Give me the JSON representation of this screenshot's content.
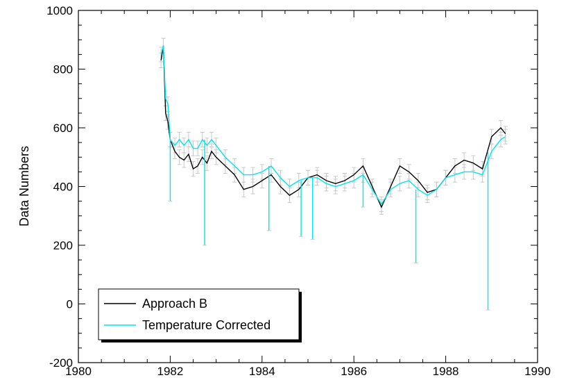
{
  "chart_data": {
    "type": "line",
    "title": "",
    "xlabel": "",
    "ylabel": "Data Numbers",
    "xlim": [
      1980,
      1990
    ],
    "ylim": [
      -200,
      1000
    ],
    "x_ticks": [
      1980,
      1982,
      1984,
      1986,
      1988,
      1990
    ],
    "y_ticks": [
      -200,
      0,
      200,
      400,
      600,
      800,
      1000
    ],
    "grid": false,
    "legend_position": "bottom-left",
    "error_bar_color": "#c8c8c8",
    "series": [
      {
        "name": "Approach B",
        "color": "#000000",
        "x": [
          1981.8,
          1981.85,
          1981.9,
          1981.95,
          1982.0,
          1982.1,
          1982.2,
          1982.3,
          1982.4,
          1982.5,
          1982.6,
          1982.7,
          1982.8,
          1982.9,
          1983.0,
          1983.2,
          1983.4,
          1983.6,
          1983.8,
          1984.0,
          1984.2,
          1984.4,
          1984.6,
          1984.8,
          1985.0,
          1985.2,
          1985.4,
          1985.6,
          1985.8,
          1986.0,
          1986.2,
          1986.4,
          1986.6,
          1986.8,
          1987.0,
          1987.2,
          1987.4,
          1987.6,
          1987.8,
          1988.0,
          1988.2,
          1988.4,
          1988.6,
          1988.8,
          1989.0,
          1989.2,
          1989.3
        ],
        "y": [
          830,
          880,
          650,
          620,
          560,
          520,
          500,
          490,
          510,
          460,
          470,
          500,
          480,
          520,
          500,
          470,
          440,
          390,
          400,
          420,
          440,
          400,
          370,
          390,
          430,
          440,
          420,
          410,
          420,
          440,
          470,
          400,
          330,
          400,
          470,
          450,
          420,
          380,
          390,
          430,
          470,
          490,
          480,
          460,
          570,
          600,
          580
        ]
      },
      {
        "name": "Temperature Corrected",
        "color": "#00e5ee",
        "x": [
          1981.8,
          1981.85,
          1981.9,
          1981.95,
          1982.0,
          1982.1,
          1982.2,
          1982.3,
          1982.4,
          1982.5,
          1982.6,
          1982.7,
          1982.8,
          1982.9,
          1983.0,
          1983.2,
          1983.4,
          1983.6,
          1983.8,
          1984.0,
          1984.2,
          1984.4,
          1984.6,
          1984.8,
          1985.0,
          1985.2,
          1985.4,
          1985.6,
          1985.8,
          1986.0,
          1986.2,
          1986.4,
          1986.6,
          1986.8,
          1987.0,
          1987.2,
          1987.4,
          1987.6,
          1987.8,
          1988.0,
          1988.2,
          1988.4,
          1988.6,
          1988.8,
          1989.0,
          1989.2,
          1989.3
        ],
        "y": [
          850,
          880,
          700,
          680,
          560,
          540,
          560,
          540,
          560,
          530,
          530,
          560,
          540,
          560,
          540,
          500,
          470,
          440,
          440,
          450,
          470,
          430,
          400,
          420,
          430,
          430,
          410,
          400,
          410,
          420,
          440,
          390,
          340,
          390,
          410,
          420,
          390,
          370,
          390,
          430,
          440,
          450,
          450,
          440,
          520,
          560,
          570
        ]
      }
    ],
    "spikes": [
      {
        "x": 1982.0,
        "y": 350
      },
      {
        "x": 1982.75,
        "y": 200
      },
      {
        "x": 1984.15,
        "y": 250
      },
      {
        "x": 1984.85,
        "y": 230
      },
      {
        "x": 1985.1,
        "y": 220
      },
      {
        "x": 1986.2,
        "y": 330
      },
      {
        "x": 1987.35,
        "y": 140
      },
      {
        "x": 1988.92,
        "y": -20
      }
    ]
  }
}
